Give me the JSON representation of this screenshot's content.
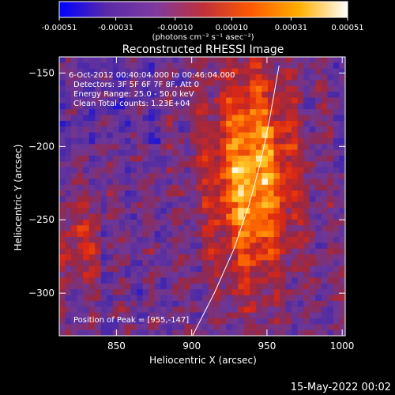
{
  "chart_data": {
    "type": "heatmap",
    "title": "Reconstructed RHESSI Image",
    "xlabel": "Heliocentric X (arcsec)",
    "ylabel": "Heliocentric Y (arcsec)",
    "xlim": [
      812,
      1002
    ],
    "ylim": [
      -329,
      -139
    ],
    "xticks": [
      850,
      900,
      950,
      1000
    ],
    "yticks": [
      -150,
      -200,
      -250,
      -300
    ],
    "colorbar": {
      "label": "(photons cm⁻² s⁻¹ asec⁻²)",
      "range": [
        -0.00051,
        0.00051
      ],
      "ticks": [
        "-0.00051",
        "-0.00031",
        "-0.00010",
        "0.00010",
        "0.00031",
        "0.00051"
      ],
      "colors": [
        "#0000ff",
        "#5a2aa8",
        "#7f3aa0",
        "#c0303a",
        "#ff5a00",
        "#ffb000",
        "#ffffff"
      ]
    },
    "info": {
      "line1": "6-Oct-2012 00:40:04.000 to 00:46:04.000",
      "line2": "Detectors: 3F 5F 6F 7F 8F, Att 0",
      "line3": "Energy Range: 25.0 - 50.0 keV",
      "line4": "Clean     Total counts: 1.23E+04"
    },
    "peak_label": "Position of Peak = [955,-147]",
    "peak": [
      955,
      -147
    ],
    "limb_curve": [
      [
        900,
        -330
      ],
      [
        915,
        -300
      ],
      [
        928,
        -270
      ],
      [
        938,
        -240
      ],
      [
        946,
        -210
      ],
      [
        952,
        -180
      ],
      [
        958,
        -145
      ]
    ],
    "emission_center": [
      940,
      -220
    ]
  },
  "footer_date": "15-May-2022 00:02"
}
